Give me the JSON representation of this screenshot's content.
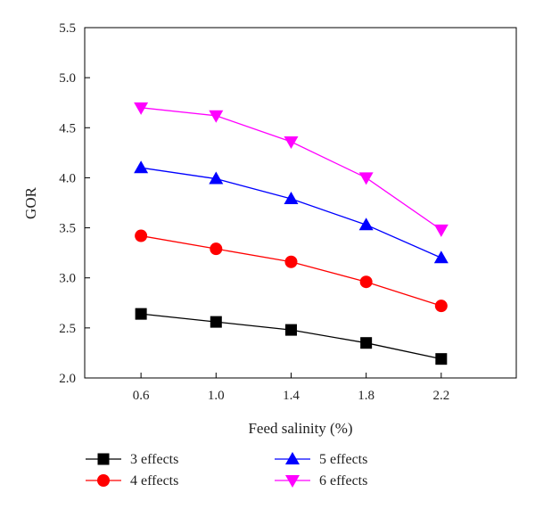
{
  "chart_data": {
    "type": "line",
    "title": "",
    "xlabel": "Feed salinity (%)",
    "ylabel": "GOR",
    "x": [
      0.6,
      1.0,
      1.4,
      1.8,
      2.2
    ],
    "x_tick_labels": [
      "0.6",
      "1.0",
      "1.4",
      "1.8",
      "2.2"
    ],
    "xlim": [
      0.3,
      2.6
    ],
    "ylim": [
      2.0,
      5.5
    ],
    "y_ticks": [
      2.0,
      2.5,
      3.0,
      3.5,
      4.0,
      4.5,
      5.0,
      5.5
    ],
    "y_tick_labels": [
      "2.0",
      "2.5",
      "3.0",
      "3.5",
      "4.0",
      "4.5",
      "5.0",
      "5.5"
    ],
    "grid": false,
    "legend_position": "bottom",
    "series": [
      {
        "name": "3 effects",
        "marker": "square",
        "color": "#000000",
        "values": [
          2.64,
          2.56,
          2.48,
          2.35,
          2.19
        ]
      },
      {
        "name": "4 effects",
        "marker": "circle",
        "color": "#ff0000",
        "values": [
          3.42,
          3.29,
          3.16,
          2.96,
          2.72
        ]
      },
      {
        "name": "5 effects",
        "marker": "triangle-up",
        "color": "#0000ff",
        "values": [
          4.1,
          3.99,
          3.79,
          3.53,
          3.2
        ]
      },
      {
        "name": "6 effects",
        "marker": "triangle-down",
        "color": "#ff00ff",
        "values": [
          4.7,
          4.62,
          4.36,
          4.0,
          3.48
        ]
      }
    ]
  }
}
